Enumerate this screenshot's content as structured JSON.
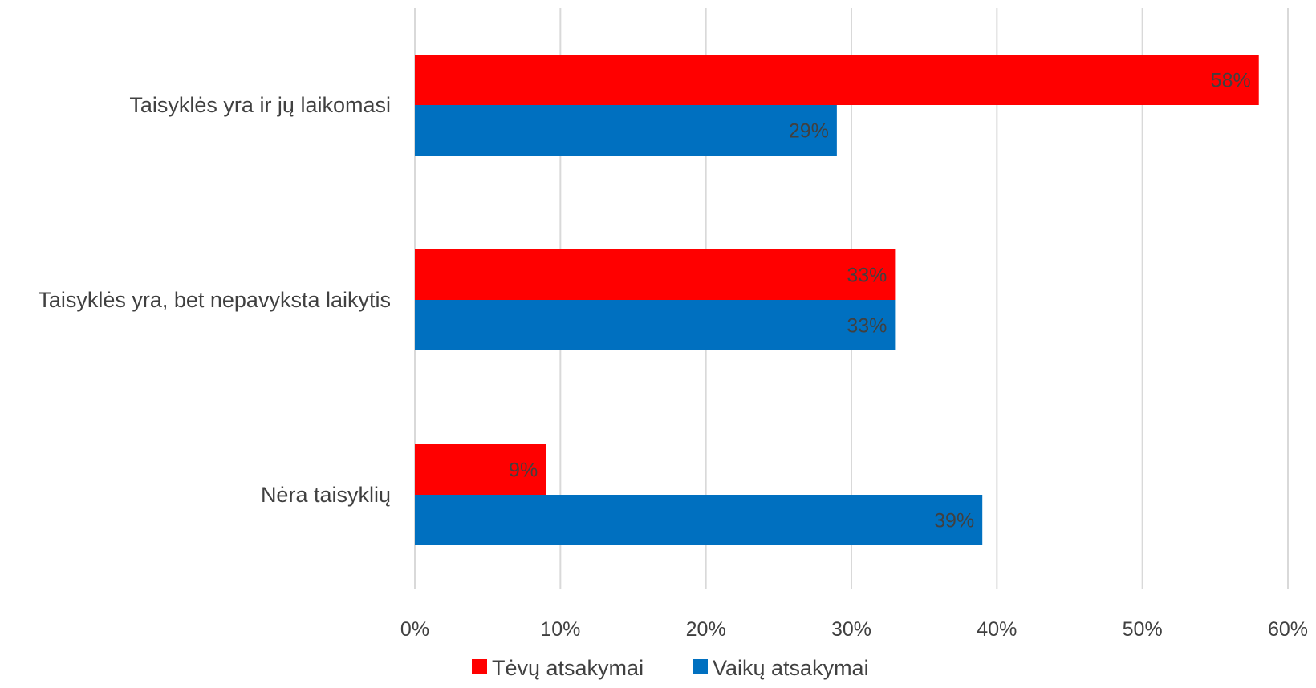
{
  "chart_data": {
    "type": "bar",
    "orientation": "horizontal",
    "categories": [
      "Taisyklės yra ir jų laikomasi",
      "Taisyklės yra, bet nepavyksta laikytis",
      "Nėra taisyklių"
    ],
    "series": [
      {
        "name": "Tėvų atsakymai",
        "color": "#ff0000",
        "values": [
          58,
          33,
          9
        ],
        "labels": [
          "58%",
          "33%",
          "9%"
        ]
      },
      {
        "name": "Vaikų atsakymai",
        "color": "#0070c0",
        "values": [
          29,
          33,
          39
        ],
        "labels": [
          "29%",
          "33%",
          "39%"
        ]
      }
    ],
    "xlim": [
      0,
      60
    ],
    "xticks": [
      0,
      10,
      20,
      30,
      40,
      50,
      60
    ],
    "xtick_labels": [
      "0%",
      "10%",
      "20%",
      "30%",
      "40%",
      "50%",
      "60%"
    ],
    "grid": true,
    "legend_position": "bottom",
    "title": "",
    "xlabel": "",
    "ylabel": ""
  }
}
